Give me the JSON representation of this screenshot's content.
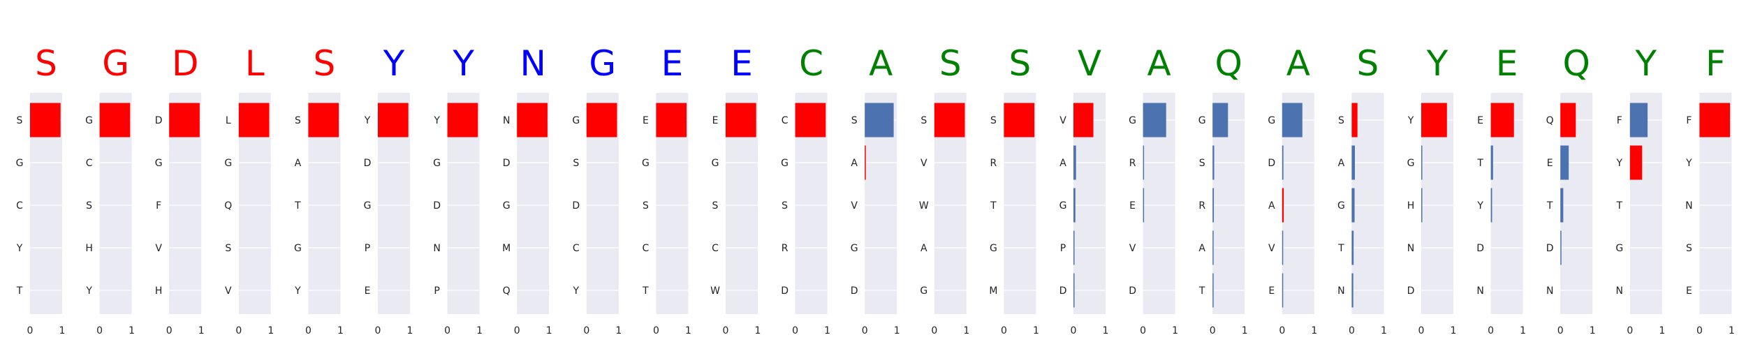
{
  "colors": {
    "panel_bg": "#eaeaf2",
    "grid": "#ffffff",
    "red": "#ff0000",
    "blue": "#0000ff",
    "green": "#008000",
    "bar_blue": "#4c72b0",
    "bar_red": "#ff0000"
  },
  "chart_data": {
    "type": "bar",
    "orientation": "horizontal",
    "xlim": [
      0,
      1
    ],
    "xticks": [
      "0",
      "1"
    ],
    "grid": true,
    "panels": [
      {
        "letter": "S",
        "letter_color": "red",
        "categories": [
          "S",
          "G",
          "C",
          "Y",
          "T"
        ],
        "values": [
          0.95,
          0.0,
          0.0,
          0.0,
          0.0
        ],
        "bar_colors": [
          "red",
          "red",
          "red",
          "red",
          "red"
        ]
      },
      {
        "letter": "G",
        "letter_color": "red",
        "categories": [
          "G",
          "C",
          "S",
          "H",
          "Y"
        ],
        "values": [
          0.95,
          0.0,
          0.0,
          0.0,
          0.0
        ],
        "bar_colors": [
          "red",
          "red",
          "red",
          "red",
          "red"
        ]
      },
      {
        "letter": "D",
        "letter_color": "red",
        "categories": [
          "D",
          "G",
          "F",
          "V",
          "H"
        ],
        "values": [
          0.95,
          0.0,
          0.0,
          0.0,
          0.0
        ],
        "bar_colors": [
          "red",
          "red",
          "red",
          "red",
          "red"
        ]
      },
      {
        "letter": "L",
        "letter_color": "red",
        "categories": [
          "L",
          "G",
          "Q",
          "S",
          "V"
        ],
        "values": [
          0.95,
          0.0,
          0.0,
          0.0,
          0.0
        ],
        "bar_colors": [
          "red",
          "red",
          "red",
          "red",
          "red"
        ]
      },
      {
        "letter": "S",
        "letter_color": "red",
        "categories": [
          "S",
          "A",
          "T",
          "G",
          "Y"
        ],
        "values": [
          0.95,
          0.0,
          0.0,
          0.0,
          0.0
        ],
        "bar_colors": [
          "red",
          "red",
          "red",
          "red",
          "red"
        ]
      },
      {
        "letter": "Y",
        "letter_color": "blue",
        "categories": [
          "Y",
          "D",
          "G",
          "P",
          "E"
        ],
        "values": [
          0.95,
          0.0,
          0.0,
          0.0,
          0.0
        ],
        "bar_colors": [
          "red",
          "red",
          "red",
          "red",
          "red"
        ]
      },
      {
        "letter": "Y",
        "letter_color": "blue",
        "categories": [
          "Y",
          "G",
          "D",
          "N",
          "P"
        ],
        "values": [
          0.95,
          0.0,
          0.0,
          0.0,
          0.0
        ],
        "bar_colors": [
          "red",
          "red",
          "red",
          "red",
          "red"
        ]
      },
      {
        "letter": "N",
        "letter_color": "blue",
        "categories": [
          "N",
          "D",
          "G",
          "M",
          "Q"
        ],
        "values": [
          0.95,
          0.0,
          0.0,
          0.0,
          0.0
        ],
        "bar_colors": [
          "red",
          "red",
          "red",
          "red",
          "red"
        ]
      },
      {
        "letter": "G",
        "letter_color": "blue",
        "categories": [
          "G",
          "S",
          "D",
          "C",
          "Y"
        ],
        "values": [
          0.95,
          0.0,
          0.0,
          0.0,
          0.0
        ],
        "bar_colors": [
          "red",
          "red",
          "red",
          "red",
          "red"
        ]
      },
      {
        "letter": "E",
        "letter_color": "blue",
        "categories": [
          "E",
          "G",
          "S",
          "C",
          "T"
        ],
        "values": [
          0.95,
          0.0,
          0.0,
          0.0,
          0.0
        ],
        "bar_colors": [
          "red",
          "red",
          "red",
          "red",
          "red"
        ]
      },
      {
        "letter": "E",
        "letter_color": "blue",
        "categories": [
          "E",
          "G",
          "S",
          "C",
          "W"
        ],
        "values": [
          0.95,
          0.0,
          0.0,
          0.0,
          0.0
        ],
        "bar_colors": [
          "red",
          "red",
          "red",
          "red",
          "red"
        ]
      },
      {
        "letter": "C",
        "letter_color": "green",
        "categories": [
          "C",
          "G",
          "S",
          "R",
          "D"
        ],
        "values": [
          0.95,
          0.0,
          0.0,
          0.0,
          0.0
        ],
        "bar_colors": [
          "red",
          "red",
          "red",
          "red",
          "red"
        ]
      },
      {
        "letter": "A",
        "letter_color": "green",
        "categories": [
          "S",
          "A",
          "V",
          "G",
          "D"
        ],
        "values": [
          0.9,
          0.03,
          0.0,
          0.0,
          0.0
        ],
        "bar_colors": [
          "bar_blue",
          "red",
          "red",
          "red",
          "red"
        ]
      },
      {
        "letter": "S",
        "letter_color": "green",
        "categories": [
          "S",
          "V",
          "W",
          "A",
          "G"
        ],
        "values": [
          0.95,
          0.0,
          0.0,
          0.0,
          0.0
        ],
        "bar_colors": [
          "red",
          "red",
          "red",
          "red",
          "red"
        ]
      },
      {
        "letter": "S",
        "letter_color": "green",
        "categories": [
          "S",
          "R",
          "T",
          "G",
          "M"
        ],
        "values": [
          0.95,
          0.0,
          0.0,
          0.0,
          0.0
        ],
        "bar_colors": [
          "red",
          "red",
          "red",
          "red",
          "red"
        ]
      },
      {
        "letter": "V",
        "letter_color": "green",
        "categories": [
          "V",
          "A",
          "G",
          "P",
          "D"
        ],
        "values": [
          0.62,
          0.08,
          0.06,
          0.02,
          0.02
        ],
        "bar_colors": [
          "red",
          "bar_blue",
          "bar_blue",
          "bar_blue",
          "bar_blue"
        ]
      },
      {
        "letter": "A",
        "letter_color": "green",
        "categories": [
          "G",
          "R",
          "E",
          "V",
          "D"
        ],
        "values": [
          0.72,
          0.02,
          0.02,
          0.0,
          0.0
        ],
        "bar_colors": [
          "bar_blue",
          "bar_blue",
          "bar_blue",
          "bar_blue",
          "bar_blue"
        ]
      },
      {
        "letter": "Q",
        "letter_color": "green",
        "categories": [
          "G",
          "S",
          "R",
          "A",
          "T"
        ],
        "values": [
          0.48,
          0.05,
          0.04,
          0.02,
          0.02
        ],
        "bar_colors": [
          "bar_blue",
          "bar_blue",
          "bar_blue",
          "bar_blue",
          "bar_blue"
        ]
      },
      {
        "letter": "A",
        "letter_color": "green",
        "categories": [
          "G",
          "D",
          "A",
          "V",
          "E"
        ],
        "values": [
          0.63,
          0.04,
          0.05,
          0.02,
          0.02
        ],
        "bar_colors": [
          "bar_blue",
          "bar_blue",
          "red",
          "bar_blue",
          "bar_blue"
        ]
      },
      {
        "letter": "S",
        "letter_color": "green",
        "categories": [
          "S",
          "A",
          "G",
          "T",
          "N"
        ],
        "values": [
          0.18,
          0.1,
          0.09,
          0.06,
          0.05
        ],
        "bar_colors": [
          "red",
          "bar_blue",
          "bar_blue",
          "bar_blue",
          "bar_blue"
        ]
      },
      {
        "letter": "Y",
        "letter_color": "green",
        "categories": [
          "Y",
          "G",
          "H",
          "N",
          "D"
        ],
        "values": [
          0.8,
          0.02,
          0.02,
          0.0,
          0.0
        ],
        "bar_colors": [
          "red",
          "bar_blue",
          "bar_blue",
          "bar_blue",
          "bar_blue"
        ]
      },
      {
        "letter": "E",
        "letter_color": "green",
        "categories": [
          "E",
          "T",
          "Y",
          "D",
          "N"
        ],
        "values": [
          0.72,
          0.07,
          0.04,
          0.0,
          0.0
        ],
        "bar_colors": [
          "red",
          "bar_blue",
          "bar_blue",
          "bar_blue",
          "bar_blue"
        ]
      },
      {
        "letter": "Q",
        "letter_color": "green",
        "categories": [
          "Q",
          "E",
          "T",
          "D",
          "N"
        ],
        "values": [
          0.48,
          0.26,
          0.09,
          0.02,
          0.0
        ],
        "bar_colors": [
          "red",
          "bar_blue",
          "bar_blue",
          "bar_blue",
          "bar_blue"
        ]
      },
      {
        "letter": "Y",
        "letter_color": "green",
        "categories": [
          "F",
          "Y",
          "T",
          "G",
          "N"
        ],
        "values": [
          0.55,
          0.38,
          0.0,
          0.0,
          0.0
        ],
        "bar_colors": [
          "bar_blue",
          "red",
          "red",
          "red",
          "red"
        ]
      },
      {
        "letter": "F",
        "letter_color": "green",
        "categories": [
          "F",
          "Y",
          "N",
          "S",
          "E"
        ],
        "values": [
          0.95,
          0.0,
          0.0,
          0.0,
          0.0
        ],
        "bar_colors": [
          "red",
          "red",
          "red",
          "red",
          "red"
        ]
      }
    ]
  }
}
